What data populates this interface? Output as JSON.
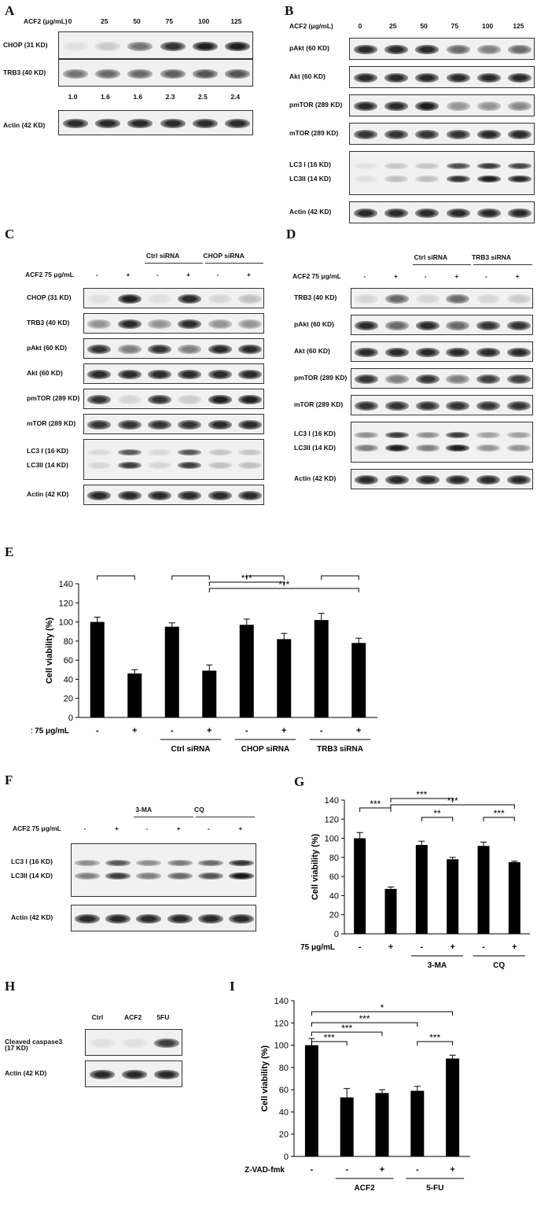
{
  "A": {
    "letter": "A",
    "treat_label": "ACF2 (μg/mL)",
    "doses": [
      "0",
      "25",
      "50",
      "75",
      "100",
      "125"
    ],
    "rows": [
      {
        "label": "CHOP (31 KD)",
        "intensity": [
          0.05,
          0.15,
          0.55,
          0.85,
          0.95,
          0.95
        ]
      },
      {
        "label": "TRB3 (40 KD)",
        "intensity": [
          0.55,
          0.6,
          0.6,
          0.65,
          0.7,
          0.7
        ]
      },
      {
        "label": "Actin (42 KD)",
        "intensity": [
          0.9,
          0.9,
          0.9,
          0.9,
          0.9,
          0.9
        ]
      }
    ],
    "quant": [
      "1.0",
      "1.6",
      "1.6",
      "2.3",
      "2.5",
      "2.4"
    ]
  },
  "B": {
    "letter": "B",
    "treat_label": "ACF2 (μg/mL)",
    "doses": [
      "0",
      "25",
      "50",
      "75",
      "100",
      "125"
    ],
    "rows": [
      {
        "label": "pAkt (60 KD)",
        "intensity": [
          0.9,
          0.9,
          0.9,
          0.6,
          0.5,
          0.6
        ]
      },
      {
        "label": "Akt (60 KD)",
        "intensity": [
          0.9,
          0.9,
          0.9,
          0.9,
          0.9,
          0.9
        ]
      },
      {
        "label": "pmTOR (289 KD)",
        "intensity": [
          0.9,
          0.9,
          0.95,
          0.4,
          0.4,
          0.45
        ]
      },
      {
        "label": "mTOR (289 KD)",
        "intensity": [
          0.85,
          0.85,
          0.85,
          0.85,
          0.9,
          0.9
        ]
      },
      {
        "label": "LC3 I (16 KD)",
        "label2": "LC3II (14 KD)",
        "intensity": [
          0.05,
          0.2,
          0.2,
          0.85,
          0.95,
          0.9
        ],
        "double": true
      },
      {
        "label": "Actin (42 KD)",
        "intensity": [
          0.9,
          0.9,
          0.9,
          0.9,
          0.9,
          0.9
        ]
      }
    ]
  },
  "C": {
    "letter": "C",
    "group1": "Ctrl siRNA",
    "group2": "CHOP siRNA",
    "treat_label": "ACF2 75 μg/mL",
    "signs": [
      "-",
      "+",
      "-",
      "+",
      "-",
      "+"
    ],
    "rows": [
      {
        "label": "CHOP (31 KD)",
        "intensity": [
          0.05,
          0.95,
          0.05,
          0.9,
          0.1,
          0.2
        ]
      },
      {
        "label": "TRB3 (40 KD)",
        "intensity": [
          0.4,
          0.9,
          0.4,
          0.9,
          0.4,
          0.4
        ]
      },
      {
        "label": "pAkt (60 KD)",
        "intensity": [
          0.85,
          0.5,
          0.85,
          0.5,
          0.9,
          0.9
        ]
      },
      {
        "label": "Akt (60 KD)",
        "intensity": [
          0.9,
          0.9,
          0.9,
          0.9,
          0.9,
          0.9
        ]
      },
      {
        "label": "pmTOR (289 KD)",
        "intensity": [
          0.85,
          0.1,
          0.85,
          0.15,
          0.95,
          0.95
        ]
      },
      {
        "label": "mTOR (289 KD)",
        "intensity": [
          0.85,
          0.85,
          0.85,
          0.85,
          0.9,
          0.9
        ]
      },
      {
        "label": "LC3 I (16 KD)",
        "label2": "LC3II (14 KD)",
        "intensity": [
          0.1,
          0.8,
          0.1,
          0.8,
          0.2,
          0.2
        ],
        "double": true
      },
      {
        "label": "Actin (42 KD)",
        "intensity": [
          0.9,
          0.9,
          0.9,
          0.9,
          0.9,
          0.9
        ]
      }
    ]
  },
  "D": {
    "letter": "D",
    "group1": "Ctrl siRNA",
    "group2": "TRB3 siRNA",
    "treat_label": "ACF2 75 μg/mL",
    "signs": [
      "-",
      "+",
      "-",
      "+",
      "-",
      "+"
    ],
    "rows": [
      {
        "label": "TRB3 (40 KD)",
        "intensity": [
          0.1,
          0.6,
          0.1,
          0.6,
          0.1,
          0.15
        ]
      },
      {
        "label": "pAkt (60 KD)",
        "intensity": [
          0.9,
          0.6,
          0.9,
          0.6,
          0.85,
          0.85
        ]
      },
      {
        "label": "Akt (60 KD)",
        "intensity": [
          0.9,
          0.9,
          0.9,
          0.9,
          0.9,
          0.9
        ]
      },
      {
        "label": "pmTOR (289 KD)",
        "intensity": [
          0.85,
          0.5,
          0.85,
          0.5,
          0.8,
          0.8
        ]
      },
      {
        "label": "mTOR (289 KD)",
        "intensity": [
          0.85,
          0.85,
          0.85,
          0.85,
          0.85,
          0.85
        ]
      },
      {
        "label": "LC3 I (16 KD)",
        "label2": "LC3II (14 KD)",
        "intensity": [
          0.5,
          0.95,
          0.5,
          0.95,
          0.4,
          0.4
        ],
        "double": true
      },
      {
        "label": "Actin (42 KD)",
        "intensity": [
          0.9,
          0.9,
          0.9,
          0.9,
          0.9,
          0.9
        ]
      }
    ]
  },
  "F": {
    "letter": "F",
    "group1": "3-MA",
    "group2": "CQ",
    "treat_label": "ACF2 75 μg/mL",
    "signs": [
      "-",
      "+",
      "-",
      "+",
      "-",
      "+"
    ],
    "rows": [
      {
        "label": "LC3 I (16 KD)",
        "label2": "LC3II (14 KD)",
        "intensity": [
          0.5,
          0.8,
          0.5,
          0.6,
          0.7,
          0.98
        ],
        "double": true
      },
      {
        "label": "Actin (42 KD)",
        "intensity": [
          0.9,
          0.9,
          0.9,
          0.9,
          0.9,
          0.9
        ]
      }
    ]
  },
  "H": {
    "letter": "H",
    "lanes": [
      "Ctrl",
      "ACF2",
      "5FU"
    ],
    "rows": [
      {
        "label": "Cleaved caspase3",
        "label2": "(17 KD)",
        "intensity": [
          0.05,
          0.05,
          0.8
        ]
      },
      {
        "label": "Actin (42 KD)",
        "intensity": [
          0.9,
          0.9,
          0.9
        ]
      }
    ]
  },
  "chart_data": [
    {
      "panel": "E",
      "type": "bar",
      "ylabel": "Cell viability (%)",
      "ylim": [
        0,
        140
      ],
      "yticks": [
        0,
        20,
        40,
        60,
        80,
        100,
        120,
        140
      ],
      "treat_label": "ACF2 75 μg/mL",
      "signs": [
        "-",
        "+",
        "-",
        "+",
        "-",
        "+",
        "-",
        "+"
      ],
      "groups": [
        {
          "label": "Ctrl siRNA",
          "bars": [
            2,
            3
          ]
        },
        {
          "label": "CHOP siRNA",
          "bars": [
            4,
            5
          ]
        },
        {
          "label": "TRB3 siRNA",
          "bars": [
            6,
            7
          ]
        }
      ],
      "values": [
        100,
        46,
        95,
        49,
        97,
        82,
        102,
        78
      ],
      "errors": [
        5,
        4,
        4,
        6,
        6,
        6,
        7,
        5
      ],
      "significance": [
        {
          "from": 0,
          "to": 1,
          "label": "***"
        },
        {
          "from": 2,
          "to": 3,
          "label": "***"
        },
        {
          "from": 4,
          "to": 5,
          "label": "*"
        },
        {
          "from": 6,
          "to": 7,
          "label": "***"
        },
        {
          "from": 3,
          "to": 5,
          "label": "***"
        },
        {
          "from": 3,
          "to": 7,
          "label": "***"
        }
      ]
    },
    {
      "panel": "G",
      "type": "bar",
      "ylabel": "Cell viability (%)",
      "ylim": [
        0,
        140
      ],
      "yticks": [
        0,
        20,
        40,
        60,
        80,
        100,
        120,
        140
      ],
      "treat_label": "ACF2 75 μg/mL",
      "signs": [
        "-",
        "+",
        "-",
        "+",
        "-",
        "+"
      ],
      "groups": [
        {
          "label": "3-MA",
          "bars": [
            2,
            3
          ]
        },
        {
          "label": "CQ",
          "bars": [
            4,
            5
          ]
        }
      ],
      "values": [
        100,
        47,
        93,
        78,
        92,
        75
      ],
      "errors": [
        6,
        2,
        4,
        2,
        4,
        1
      ],
      "significance": [
        {
          "from": 0,
          "to": 1,
          "label": "***"
        },
        {
          "from": 2,
          "to": 3,
          "label": "**"
        },
        {
          "from": 4,
          "to": 5,
          "label": "***"
        },
        {
          "from": 1,
          "to": 3,
          "label": "***"
        },
        {
          "from": 1,
          "to": 5,
          "label": "***"
        }
      ]
    },
    {
      "panel": "I",
      "type": "bar",
      "ylabel": "Cell viability (%)",
      "ylim": [
        0,
        140
      ],
      "yticks": [
        0,
        20,
        40,
        60,
        80,
        100,
        120,
        140
      ],
      "treat_label": "Z-VAD-fmk",
      "signs": [
        "-",
        "-",
        "+",
        "-",
        "+"
      ],
      "groups": [
        {
          "label": "ACF2",
          "bars": [
            1,
            2
          ]
        },
        {
          "label": "5-FU",
          "bars": [
            3,
            4
          ]
        }
      ],
      "values": [
        100,
        53,
        57,
        59,
        88
      ],
      "errors": [
        6,
        8,
        3,
        4,
        3
      ],
      "significance": [
        {
          "from": 0,
          "to": 1,
          "label": "***"
        },
        {
          "from": 3,
          "to": 4,
          "label": "***"
        },
        {
          "from": 0,
          "to": 2,
          "label": "***"
        },
        {
          "from": 0,
          "to": 3,
          "label": "***"
        },
        {
          "from": 0,
          "to": 4,
          "label": "*"
        }
      ]
    }
  ]
}
